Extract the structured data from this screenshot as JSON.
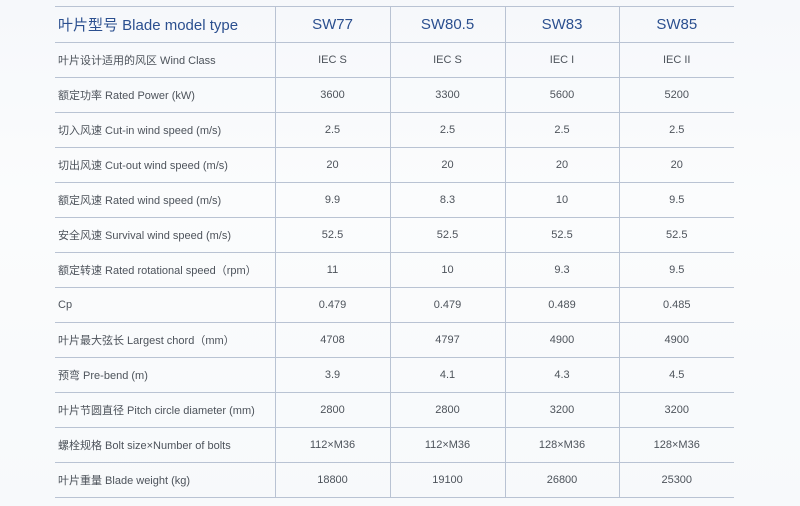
{
  "header": {
    "label": "叶片型号 Blade model type",
    "models": [
      "SW77",
      "SW80.5",
      "SW83",
      "SW85"
    ]
  },
  "rows": [
    {
      "label": "叶片设计适用的风区 Wind Class",
      "values": [
        "IEC S",
        "IEC S",
        "IEC I",
        "IEC  II"
      ]
    },
    {
      "label": "额定功率 Rated Power (kW)",
      "values": [
        "3600",
        "3300",
        "5600",
        "5200"
      ]
    },
    {
      "label": "切入风速 Cut-in wind speed (m/s)",
      "values": [
        "2.5",
        "2.5",
        "2.5",
        "2.5"
      ]
    },
    {
      "label": "切出风速 Cut-out wind speed (m/s)",
      "values": [
        "20",
        "20",
        "20",
        "20"
      ]
    },
    {
      "label": "额定风速 Rated wind speed (m/s)",
      "values": [
        "9.9",
        "8.3",
        "10",
        "9.5"
      ]
    },
    {
      "label": "安全风速 Survival wind speed (m/s)",
      "values": [
        "52.5",
        "52.5",
        "52.5",
        "52.5"
      ]
    },
    {
      "label": "额定转速 Rated rotational speed（rpm）",
      "values": [
        "11",
        "10",
        "9.3",
        "9.5"
      ]
    },
    {
      "label": "Cp",
      "values": [
        "0.479",
        "0.479",
        "0.489",
        "0.485"
      ]
    },
    {
      "label": "叶片最大弦长 Largest chord（mm）",
      "values": [
        "4708",
        "4797",
        "4900",
        "4900"
      ]
    },
    {
      "label": "预弯 Pre-bend (m)",
      "values": [
        "3.9",
        "4.1",
        "4.3",
        "4.5"
      ]
    },
    {
      "label": "叶片节圆直径 Pitch circle diameter (mm)",
      "values": [
        "2800",
        "2800",
        "3200",
        "3200"
      ]
    },
    {
      "label": "螺栓规格 Bolt size×Number of bolts",
      "values": [
        "112×M36",
        "112×M36",
        "128×M36",
        "128×M36"
      ]
    },
    {
      "label": "叶片重量 Blade weight (kg)",
      "values": [
        "18800",
        "19100",
        "26800",
        "25300"
      ]
    }
  ]
}
